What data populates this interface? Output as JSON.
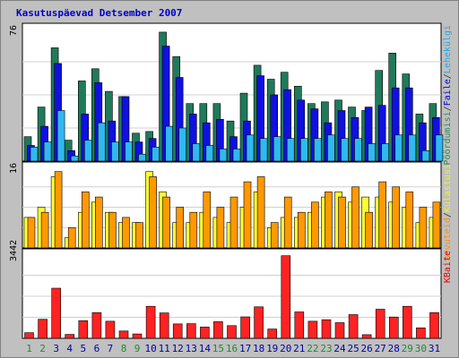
{
  "chart_data": {
    "type": "bar",
    "title": "Kasutuspäevad Detsember 2007",
    "categories": [
      "1",
      "2",
      "3",
      "4",
      "5",
      "6",
      "7",
      "8",
      "9",
      "10",
      "11",
      "12",
      "13",
      "14",
      "15",
      "16",
      "17",
      "18",
      "19",
      "20",
      "21",
      "22",
      "23",
      "24",
      "25",
      "26",
      "27",
      "28",
      "29",
      "30",
      "31"
    ],
    "weekend_days": [
      "1",
      "2",
      "8",
      "9",
      "15",
      "16",
      "22",
      "23",
      "29",
      "30"
    ],
    "panels": [
      {
        "name": "top",
        "ymax_label": "76",
        "ymax": 76,
        "legend": [
          {
            "text": "Pöördumisi",
            "color": "#2e8b57"
          },
          {
            "text": "/",
            "color": "#333333"
          },
          {
            "text": "Faile",
            "color": "#0000dd"
          },
          {
            "text": "/",
            "color": "#333333"
          },
          {
            "text": "Lehekülgi",
            "color": "#1aaaf0"
          }
        ],
        "series": [
          {
            "name": "Pöördumisi",
            "color": "#1f7a5a",
            "values": [
              14,
              31,
              65,
              12,
              46,
              53,
              40,
              37,
              16,
              17,
              74,
              60,
              33,
              33,
              33,
              23,
              39,
              55,
              47,
              51,
              43,
              33,
              34,
              35,
              31,
              29,
              52,
              62,
              50,
              27,
              33
            ]
          },
          {
            "name": "Faile",
            "color": "#1010e0",
            "values": [
              9,
              20,
              56,
              6,
              27,
              45,
              23,
              37,
              11,
              13,
              66,
              48,
              27,
              22,
              24,
              14,
              23,
              49,
              38,
              41,
              35,
              30,
              22,
              29,
              25,
              31,
              32,
              42,
              42,
              22,
              25
            ]
          },
          {
            "name": "Lehekülgi",
            "color": "#30b8f0",
            "values": [
              8,
              11,
              29,
              3,
              12,
              22,
              11,
              11,
              4,
              8,
              20,
              19,
              10,
              9,
              7,
              7,
              15,
              13,
              14,
              13,
              13,
              13,
              15,
              13,
              13,
              10,
              10,
              15,
              15,
              6,
              15
            ]
          }
        ]
      },
      {
        "name": "middle",
        "ymax_label": "16",
        "ymax": 16,
        "legend": [
          {
            "text": "Arvuteid",
            "color": "#ff8c00"
          },
          {
            "text": "/",
            "color": "#333333"
          },
          {
            "text": "Külastusi",
            "color": "#eeee33"
          }
        ],
        "series": [
          {
            "name": "Külastusi",
            "color": "#ffff33",
            "values": [
              6,
              8,
              14,
              2,
              7,
              9,
              7,
              5,
              5,
              15,
              11,
              5,
              5,
              7,
              6,
              5,
              8,
              11,
              4,
              6,
              6,
              7,
              10,
              11,
              9,
              10,
              10,
              9,
              8,
              5,
              6
            ]
          },
          {
            "name": "Arvuteid",
            "color": "#ff9900",
            "values": [
              6,
              7,
              15,
              4,
              11,
              10,
              7,
              6,
              5,
              14,
              10,
              8,
              7,
              11,
              8,
              10,
              13,
              14,
              5,
              10,
              7,
              9,
              11,
              10,
              12,
              7,
              13,
              12,
              11,
              8,
              9
            ]
          }
        ]
      },
      {
        "name": "bottom",
        "ymax_label": "3442",
        "ymax": 3442,
        "legend": [
          {
            "text": "KBaite",
            "color": "#ee0000"
          }
        ],
        "series": [
          {
            "name": "KBaite",
            "color": "#ff2222",
            "values": [
              230,
              780,
              2050,
              160,
              720,
              1050,
              700,
              300,
              180,
              1310,
              1040,
              590,
              600,
              460,
              680,
              520,
              880,
              1290,
              380,
              3380,
              1080,
              700,
              760,
              640,
              970,
              150,
              1190,
              870,
              1310,
              430,
              1050
            ]
          }
        ]
      }
    ]
  }
}
